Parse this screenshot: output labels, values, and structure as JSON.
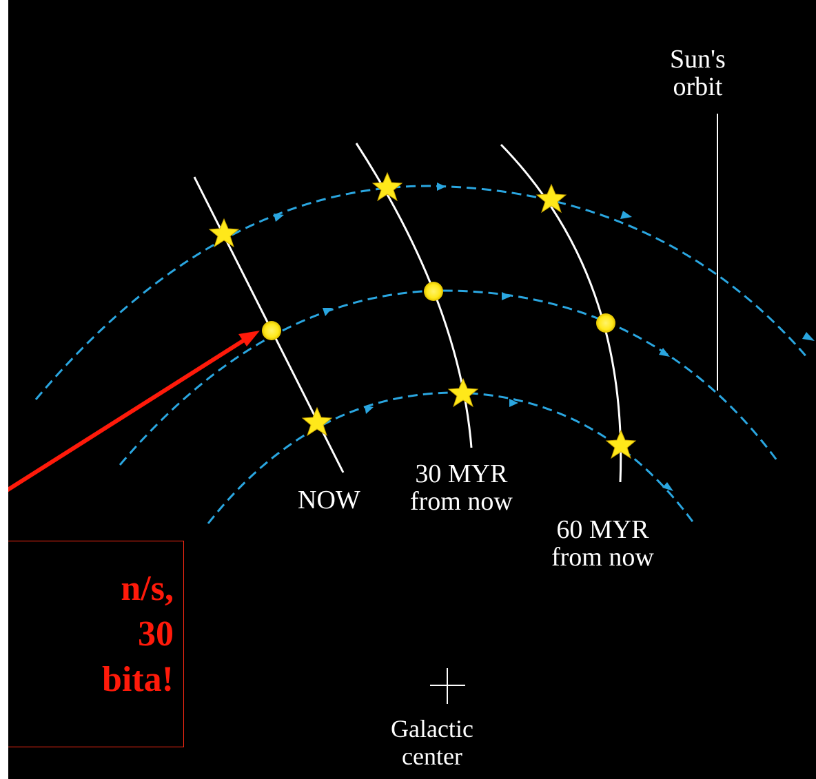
{
  "labels": {
    "suns_orbit": [
      "Sun's",
      "orbit"
    ],
    "now": "NOW",
    "myr30": [
      "30 MYR",
      "from now"
    ],
    "myr60": [
      "60 MYR",
      "from now"
    ],
    "galactic_center": [
      "Galactic",
      "center"
    ]
  },
  "callout": {
    "lines": [
      "n/s,",
      "30",
      "bita!"
    ]
  },
  "colors": {
    "background": "#000000",
    "orbit_dashed": "#2aa6e0",
    "time_lines": "#ffffff",
    "star": "#ffe81a",
    "sun": "#ffe81a",
    "callout": "#ff1a0a"
  },
  "icons": [
    "star-icon",
    "sun-icon",
    "crosshair-icon",
    "arrow-icon"
  ]
}
